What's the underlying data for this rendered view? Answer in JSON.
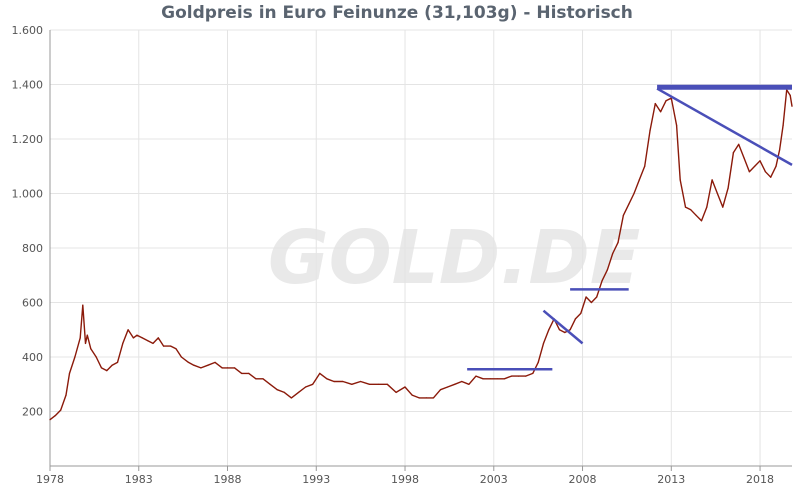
{
  "chart_data": {
    "type": "line",
    "title": "Goldpreis in Euro Feinunze (31,103g) - Historisch",
    "xlabel": "",
    "ylabel": "",
    "xlim": [
      1978.0,
      2019.8
    ],
    "ylim": [
      0,
      1600
    ],
    "grid": true,
    "x_ticks": [
      1978,
      1983,
      1988,
      1993,
      1998,
      2003,
      2008,
      2013,
      2018
    ],
    "x_tick_labels": [
      "1978",
      "1983",
      "1988",
      "1993",
      "1998",
      "2003",
      "2008",
      "2013",
      "2018"
    ],
    "y_ticks": [
      200,
      400,
      600,
      800,
      1000,
      1200,
      1400,
      1600
    ],
    "y_tick_labels": [
      "200",
      "400",
      "600",
      "800",
      "1.000",
      "1.200",
      "1.400",
      "1.600"
    ],
    "watermark": "GOLD.DE",
    "colors": {
      "line": "#8b1a0a",
      "trendlines": "#4a4fb8",
      "grid": "#e4e4e4",
      "axis": "#999999",
      "title": "#5a6470"
    },
    "series": [
      {
        "x": [
          1978.0,
          1978.3,
          1978.6,
          1978.9,
          1979.1,
          1979.4,
          1979.7,
          1979.85,
          1980.0,
          1980.1,
          1980.3,
          1980.6,
          1980.9,
          1981.2,
          1981.5,
          1981.8,
          1982.1,
          1982.4,
          1982.7,
          1982.9,
          1983.2,
          1983.5,
          1983.8,
          1984.1,
          1984.4,
          1984.8,
          1985.1,
          1985.4,
          1985.8,
          1986.1,
          1986.5,
          1986.9,
          1987.3,
          1987.7,
          1988.0,
          1988.4,
          1988.8,
          1989.2,
          1989.6,
          1990.0,
          1990.4,
          1990.8,
          1991.2,
          1991.6,
          1992.0,
          1992.4,
          1992.8,
          1993.2,
          1993.6,
          1994.0,
          1994.5,
          1995.0,
          1995.5,
          1996.0,
          1996.5,
          1997.0,
          1997.5,
          1998.0,
          1998.4,
          1998.8,
          1999.2,
          1999.6,
          2000.0,
          2000.4,
          2000.8,
          2001.2,
          2001.6,
          2002.0,
          2002.4,
          2002.8,
          2003.2,
          2003.6,
          2004.0,
          2004.4,
          2004.8,
          2005.2,
          2005.5,
          2005.8,
          2006.1,
          2006.4,
          2006.7,
          2007.0,
          2007.3,
          2007.6,
          2007.9,
          2008.2,
          2008.5,
          2008.8,
          2009.1,
          2009.4,
          2009.7,
          2010.0,
          2010.3,
          2010.6,
          2010.9,
          2011.2,
          2011.5,
          2011.8,
          2012.1,
          2012.4,
          2012.7,
          2013.0,
          2013.3,
          2013.5,
          2013.8,
          2014.1,
          2014.4,
          2014.7,
          2015.0,
          2015.3,
          2015.6,
          2015.9,
          2016.2,
          2016.5,
          2016.8,
          2017.1,
          2017.4,
          2017.7,
          2018.0,
          2018.3,
          2018.6,
          2018.9,
          2019.1,
          2019.3,
          2019.5,
          2019.7,
          2019.8
        ],
        "y": [
          170,
          185,
          205,
          260,
          340,
          400,
          470,
          590,
          450,
          480,
          430,
          400,
          360,
          350,
          370,
          380,
          450,
          500,
          470,
          480,
          470,
          460,
          450,
          470,
          440,
          440,
          430,
          400,
          380,
          370,
          360,
          370,
          380,
          360,
          360,
          360,
          340,
          340,
          320,
          320,
          300,
          280,
          270,
          250,
          270,
          290,
          300,
          340,
          320,
          310,
          310,
          300,
          310,
          300,
          300,
          300,
          270,
          290,
          260,
          250,
          250,
          250,
          280,
          290,
          300,
          310,
          300,
          330,
          320,
          320,
          320,
          320,
          330,
          330,
          330,
          340,
          380,
          450,
          500,
          540,
          500,
          490,
          500,
          540,
          560,
          620,
          600,
          620,
          680,
          720,
          780,
          820,
          920,
          960,
          1000,
          1050,
          1100,
          1230,
          1330,
          1300,
          1340,
          1350,
          1250,
          1050,
          950,
          940,
          920,
          900,
          950,
          1050,
          1000,
          950,
          1020,
          1150,
          1180,
          1130,
          1080,
          1100,
          1120,
          1080,
          1060,
          1100,
          1160,
          1250,
          1380,
          1360,
          1320
        ]
      }
    ],
    "trendlines": [
      {
        "x": [
          2001.5,
          2006.3
        ],
        "y": [
          355,
          355
        ]
      },
      {
        "x": [
          2005.8,
          2008.0
        ],
        "y": [
          570,
          450
        ]
      },
      {
        "x": [
          2007.3,
          2010.6
        ],
        "y": [
          648,
          648
        ]
      },
      {
        "x": [
          2012.2,
          2019.8
        ],
        "y": [
          1390,
          1390
        ]
      },
      {
        "x": [
          2012.2,
          2019.8
        ],
        "y": [
          1385,
          1105
        ]
      }
    ]
  }
}
